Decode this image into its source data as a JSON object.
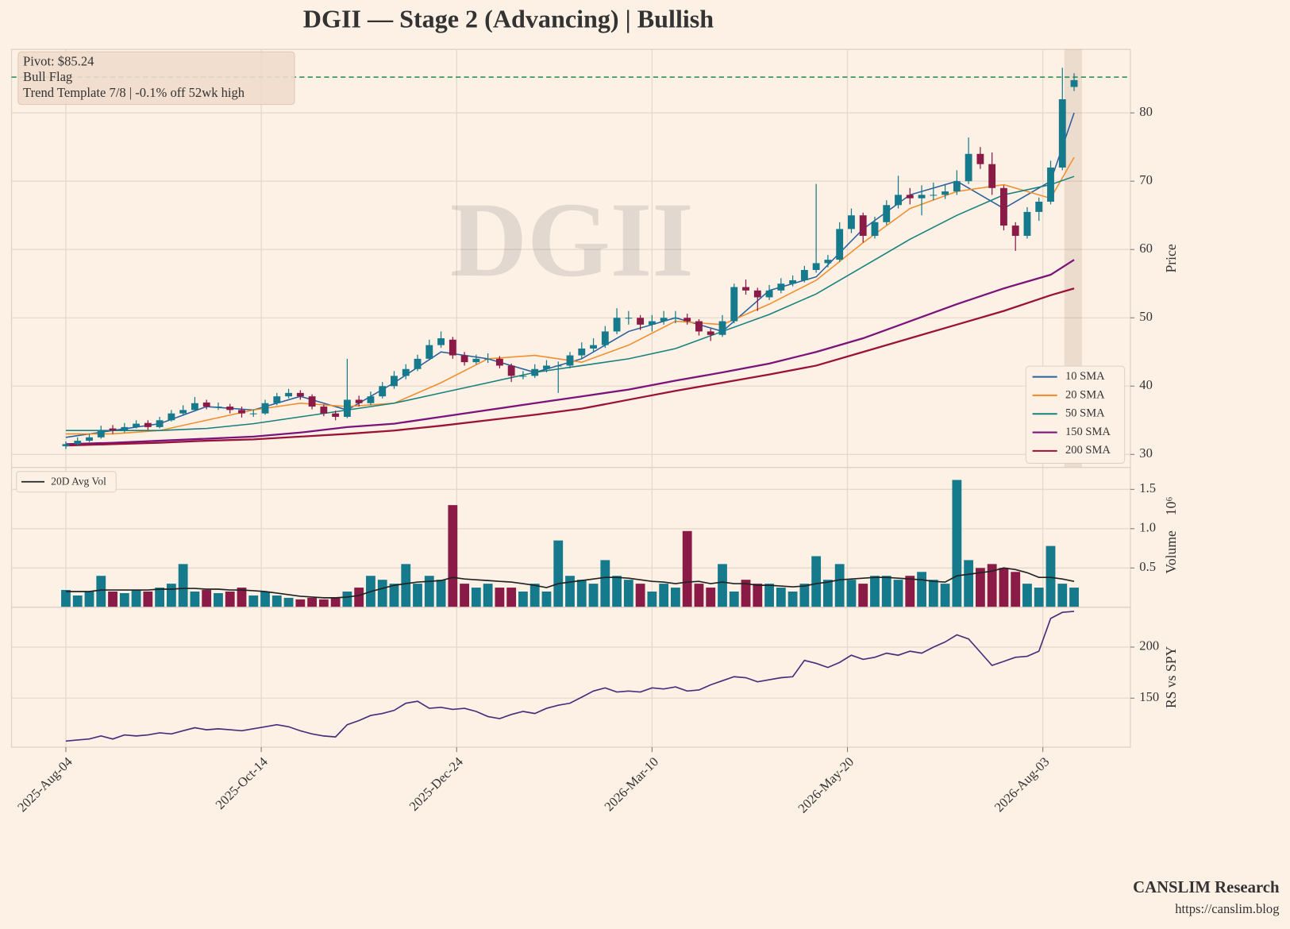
{
  "title": "DGII  —  Stage 2 (Advancing)  |  Bullish",
  "footer": {
    "brand": "CANSLIM Research",
    "url": "https://canslim.blog"
  },
  "chart_data": [
    {
      "type": "candlestick",
      "ylabel": "Price",
      "watermark": "DGII",
      "grid": true,
      "xlim": [
        -13.9,
        272.4
      ],
      "ylim": [
        28.1,
        89.3
      ],
      "yticks": [
        30,
        40,
        50,
        60,
        70,
        80
      ],
      "xticks": [
        {
          "value": 0,
          "label": "2025-Aug-04"
        },
        {
          "value": 50,
          "label": "2025-Oct-14"
        },
        {
          "value": 100,
          "label": "2025-Dec-24"
        },
        {
          "value": 150,
          "label": "2026-Mar-10"
        },
        {
          "value": 200,
          "label": "2026-May-20"
        },
        {
          "value": 250,
          "label": "2026-Aug-03"
        }
      ],
      "up_color": "#157a8c",
      "down_color": "#8a1a46",
      "pivot": 85.24,
      "pivot_color": "#1e8a4a",
      "annotation": [
        "Pivot: $85.24",
        "Bull Flag",
        "Trend Template 7/8  |  -0.1% off 52wk high"
      ],
      "highlight_x": [
        255.5,
        260
      ],
      "legend": "lower right",
      "x": [
        0,
        3,
        6,
        9,
        12,
        15,
        18,
        21,
        24,
        27,
        30,
        33,
        36,
        39,
        42,
        45,
        48,
        51,
        54,
        57,
        60,
        63,
        66,
        69,
        72,
        75,
        78,
        81,
        84,
        87,
        90,
        93,
        96,
        99,
        102,
        105,
        108,
        111,
        114,
        117,
        120,
        123,
        126,
        129,
        132,
        135,
        138,
        141,
        144,
        147,
        150,
        153,
        156,
        159,
        162,
        165,
        168,
        171,
        174,
        177,
        180,
        183,
        186,
        189,
        192,
        195,
        198,
        201,
        204,
        207,
        210,
        213,
        216,
        219,
        222,
        225,
        228,
        231,
        234,
        237,
        240,
        243,
        246,
        249,
        252,
        255,
        258
      ],
      "ohlc": [
        [
          31.2,
          31.9,
          30.8,
          31.5
        ],
        [
          31.5,
          32.5,
          31.2,
          32
        ],
        [
          32,
          33,
          31.8,
          32.5
        ],
        [
          32.5,
          34.2,
          32.3,
          33.5
        ],
        [
          33.8,
          34.3,
          33,
          33.5
        ],
        [
          33.5,
          34.6,
          33.2,
          34
        ],
        [
          34,
          35,
          33.8,
          34.5
        ],
        [
          34.6,
          35,
          33.6,
          34
        ],
        [
          34,
          35.5,
          33.8,
          35
        ],
        [
          35,
          36.5,
          34.8,
          36
        ],
        [
          36,
          37.2,
          35.8,
          36.5
        ],
        [
          36.5,
          38.4,
          36.3,
          37.5
        ],
        [
          37.6,
          38,
          36.6,
          37
        ],
        [
          37,
          37.6,
          36.5,
          37
        ],
        [
          37,
          37.4,
          36,
          36.5
        ],
        [
          36.5,
          37,
          35.4,
          36
        ],
        [
          36,
          36.6,
          35.5,
          36
        ],
        [
          36,
          38,
          35.8,
          37.5
        ],
        [
          37.5,
          39,
          37.2,
          38.5
        ],
        [
          38.5,
          39.6,
          38.2,
          39
        ],
        [
          39,
          39.4,
          38,
          38.5
        ],
        [
          38.5,
          38.8,
          36.6,
          37
        ],
        [
          37,
          37.3,
          35.6,
          36
        ],
        [
          36,
          36.4,
          35,
          35.5
        ],
        [
          35.5,
          44,
          35.3,
          38
        ],
        [
          38,
          38.6,
          37,
          37.5
        ],
        [
          37.5,
          39.2,
          37.2,
          38.5
        ],
        [
          38.5,
          40.6,
          38.2,
          40
        ],
        [
          40,
          42.2,
          39.6,
          41.5
        ],
        [
          41.5,
          43.2,
          41,
          42.5
        ],
        [
          42.5,
          44.6,
          42.2,
          44
        ],
        [
          44,
          46.8,
          43.8,
          46
        ],
        [
          46,
          48,
          45.6,
          47
        ],
        [
          46.8,
          47.2,
          44,
          44.5
        ],
        [
          44.5,
          45,
          43,
          43.5
        ],
        [
          43.5,
          44.6,
          43.2,
          44
        ],
        [
          44,
          44.8,
          43.4,
          44
        ],
        [
          44,
          44.4,
          42.6,
          43
        ],
        [
          43,
          43.3,
          40.6,
          41.5
        ],
        [
          41.5,
          42.2,
          41,
          41.5
        ],
        [
          41.5,
          43.2,
          41.2,
          42.5
        ],
        [
          42.5,
          43.8,
          42,
          43
        ],
        [
          43,
          43.6,
          39,
          43
        ],
        [
          43,
          45,
          42.6,
          44.5
        ],
        [
          44.5,
          46.4,
          44,
          45.5
        ],
        [
          45.5,
          47,
          45,
          46
        ],
        [
          46,
          48.8,
          45.6,
          48
        ],
        [
          48,
          51.4,
          47.6,
          50
        ],
        [
          50,
          51,
          49,
          50
        ],
        [
          50,
          50.4,
          48.2,
          49
        ],
        [
          49,
          50.4,
          48,
          49.5
        ],
        [
          49.5,
          51,
          49,
          50
        ],
        [
          50,
          51,
          49.2,
          50
        ],
        [
          50,
          50.6,
          49,
          49.5
        ],
        [
          49.5,
          49.8,
          47.4,
          48
        ],
        [
          48,
          48.4,
          46.6,
          47.5
        ],
        [
          47.5,
          50.4,
          47.2,
          49.5
        ],
        [
          49.5,
          55,
          49.2,
          54.5
        ],
        [
          54.5,
          55.6,
          53.4,
          54
        ],
        [
          54,
          54.4,
          51,
          53
        ],
        [
          53,
          54.8,
          52.6,
          54
        ],
        [
          54,
          55.8,
          53.6,
          55
        ],
        [
          55,
          56.2,
          54.6,
          55.5
        ],
        [
          55.5,
          57.6,
          55.2,
          57
        ],
        [
          57,
          69.6,
          56.6,
          58
        ],
        [
          58,
          59.2,
          57.4,
          58.5
        ],
        [
          58.5,
          64,
          58.2,
          63
        ],
        [
          63,
          66,
          62.4,
          65
        ],
        [
          65,
          65.4,
          61,
          62
        ],
        [
          62,
          64.8,
          61.6,
          64
        ],
        [
          64,
          67.2,
          63.6,
          66.5
        ],
        [
          66.5,
          70.8,
          66,
          68
        ],
        [
          68,
          69,
          66.6,
          67.5
        ],
        [
          67.5,
          69.4,
          65,
          68
        ],
        [
          68,
          69.8,
          67.2,
          68
        ],
        [
          68,
          69.6,
          67.4,
          68.5
        ],
        [
          68.5,
          71.6,
          68,
          70
        ],
        [
          70,
          76.4,
          69.6,
          74
        ],
        [
          74,
          75,
          71.8,
          72.5
        ],
        [
          72.5,
          74.2,
          68,
          69
        ],
        [
          69,
          69.4,
          62.8,
          63.5
        ],
        [
          63.5,
          64,
          59.8,
          62
        ],
        [
          62,
          66.2,
          61.6,
          65.5
        ],
        [
          65.5,
          67.6,
          64.2,
          67
        ],
        [
          67,
          73,
          66.6,
          72
        ],
        [
          72,
          86.6,
          71.6,
          82
        ],
        [
          83.8,
          85.8,
          83.2,
          84.8
        ]
      ],
      "series": [
        {
          "name": "10 SMA",
          "color": "#2a5f9e",
          "x": [
            0,
            12,
            24,
            36,
            48,
            60,
            72,
            84,
            96,
            108,
            120,
            132,
            144,
            156,
            168,
            180,
            192,
            204,
            216,
            228,
            240,
            252,
            258
          ],
          "values": [
            32.5,
            33.5,
            34.5,
            37,
            36.5,
            38.5,
            36.5,
            40.5,
            45,
            44,
            42,
            44,
            48,
            50,
            48,
            54,
            56,
            63,
            68,
            70,
            66,
            70,
            80
          ]
        },
        {
          "name": "20 SMA",
          "color": "#f28e2b",
          "x": [
            0,
            12,
            24,
            36,
            48,
            60,
            72,
            84,
            96,
            108,
            120,
            132,
            144,
            156,
            168,
            180,
            192,
            204,
            216,
            228,
            240,
            252,
            258
          ],
          "values": [
            33,
            33,
            33.5,
            35,
            36.5,
            37.5,
            37,
            37.5,
            40.5,
            44,
            44.5,
            43.5,
            46,
            49.5,
            49,
            52,
            55.5,
            61,
            66,
            68.5,
            69.5,
            67.5,
            73.5
          ]
        },
        {
          "name": "50 SMA",
          "color": "#17807e",
          "x": [
            0,
            12,
            24,
            36,
            48,
            60,
            72,
            84,
            96,
            108,
            120,
            132,
            144,
            156,
            168,
            180,
            192,
            204,
            216,
            228,
            240,
            252,
            258
          ],
          "values": [
            33.5,
            33.5,
            33.5,
            33.8,
            34.5,
            35.5,
            36.5,
            37.5,
            39,
            40.5,
            42,
            43,
            44,
            45.5,
            48,
            50.5,
            53.5,
            57.5,
            61.5,
            65,
            68,
            69.5,
            70.7
          ]
        },
        {
          "name": "150 SMA",
          "color": "#7b137a",
          "x": [
            0,
            12,
            24,
            36,
            48,
            60,
            72,
            84,
            96,
            108,
            120,
            132,
            144,
            156,
            168,
            180,
            192,
            204,
            216,
            228,
            240,
            252,
            258
          ],
          "values": [
            31.5,
            31.7,
            32,
            32.3,
            32.6,
            33.2,
            34,
            34.5,
            35.5,
            36.5,
            37.5,
            38.5,
            39.5,
            40.8,
            42,
            43.3,
            45,
            47,
            49.5,
            52,
            54.3,
            56.3,
            58.5
          ]
        },
        {
          "name": "200 SMA",
          "color": "#9b1238",
          "x": [
            0,
            12,
            24,
            36,
            48,
            60,
            72,
            84,
            96,
            108,
            120,
            132,
            144,
            156,
            168,
            180,
            192,
            204,
            216,
            228,
            240,
            252,
            258
          ],
          "values": [
            31.3,
            31.5,
            31.7,
            32,
            32.2,
            32.6,
            33,
            33.5,
            34.2,
            35,
            35.8,
            36.7,
            38,
            39.3,
            40.5,
            41.7,
            43,
            45,
            47,
            49,
            51,
            53.3,
            54.3
          ]
        }
      ]
    },
    {
      "type": "bar",
      "ylabel": "Volume",
      "offset_label": "10⁶",
      "grid": true,
      "legend": "upper left",
      "ylim": [
        0,
        1.78
      ],
      "yticks": [
        0.5,
        {
          "value": 1,
          "label": "1.0"
        },
        1.5
      ],
      "values": [
        0.22,
        0.15,
        0.2,
        0.4,
        0.2,
        0.18,
        0.22,
        0.2,
        0.25,
        0.3,
        0.55,
        0.2,
        0.22,
        0.18,
        0.2,
        0.25,
        0.15,
        0.2,
        0.15,
        0.12,
        0.1,
        0.12,
        0.1,
        0.12,
        0.2,
        0.25,
        0.4,
        0.35,
        0.3,
        0.55,
        0.3,
        0.4,
        0.35,
        1.3,
        0.3,
        0.25,
        0.3,
        0.25,
        0.25,
        0.2,
        0.3,
        0.2,
        0.85,
        0.4,
        0.35,
        0.3,
        0.6,
        0.4,
        0.35,
        0.3,
        0.2,
        0.3,
        0.25,
        0.97,
        0.3,
        0.25,
        0.55,
        0.2,
        0.35,
        0.3,
        0.3,
        0.25,
        0.2,
        0.3,
        0.65,
        0.35,
        0.55,
        0.35,
        0.3,
        0.4,
        0.4,
        0.35,
        0.4,
        0.45,
        0.35,
        0.3,
        1.62,
        0.6,
        0.5,
        0.55,
        0.5,
        0.45,
        0.3,
        0.25,
        0.78,
        0.3,
        0.25
      ],
      "series": [
        {
          "name": "20D Avg Vol",
          "color": "#222222",
          "values": [
            0.2,
            0.2,
            0.2,
            0.22,
            0.22,
            0.22,
            0.22,
            0.22,
            0.23,
            0.23,
            0.24,
            0.24,
            0.23,
            0.23,
            0.22,
            0.22,
            0.21,
            0.2,
            0.18,
            0.16,
            0.14,
            0.13,
            0.12,
            0.12,
            0.13,
            0.15,
            0.2,
            0.24,
            0.28,
            0.3,
            0.32,
            0.33,
            0.34,
            0.38,
            0.36,
            0.35,
            0.34,
            0.33,
            0.32,
            0.3,
            0.28,
            0.25,
            0.3,
            0.32,
            0.34,
            0.36,
            0.38,
            0.38,
            0.37,
            0.35,
            0.33,
            0.32,
            0.3,
            0.32,
            0.33,
            0.3,
            0.32,
            0.3,
            0.3,
            0.28,
            0.28,
            0.27,
            0.26,
            0.27,
            0.3,
            0.32,
            0.35,
            0.36,
            0.37,
            0.38,
            0.38,
            0.37,
            0.36,
            0.35,
            0.33,
            0.32,
            0.4,
            0.42,
            0.44,
            0.46,
            0.5,
            0.48,
            0.44,
            0.38,
            0.38,
            0.36,
            0.33
          ]
        }
      ]
    },
    {
      "type": "line",
      "ylabel": "RS vs SPY",
      "grid": true,
      "color": "#4b2c7a",
      "ylim": [
        102,
        239
      ],
      "yticks": [
        150,
        200
      ],
      "values": [
        108,
        109,
        110,
        113,
        110,
        114,
        113,
        114,
        116,
        115,
        118,
        121,
        119,
        120,
        119,
        118,
        120,
        122,
        124,
        122,
        118,
        115,
        113,
        112,
        124,
        128,
        133,
        135,
        138,
        145,
        147,
        140,
        141,
        139,
        140,
        137,
        132,
        130,
        134,
        137,
        135,
        140,
        143,
        145,
        151,
        157,
        160,
        156,
        157,
        156,
        160,
        159,
        161,
        157,
        158,
        163,
        167,
        171,
        170,
        166,
        168,
        170,
        171,
        187,
        184,
        180,
        185,
        192,
        188,
        190,
        194,
        192,
        196,
        194,
        200,
        205,
        212,
        208,
        195,
        182,
        186,
        190,
        191,
        196,
        228,
        234,
        235
      ]
    }
  ]
}
